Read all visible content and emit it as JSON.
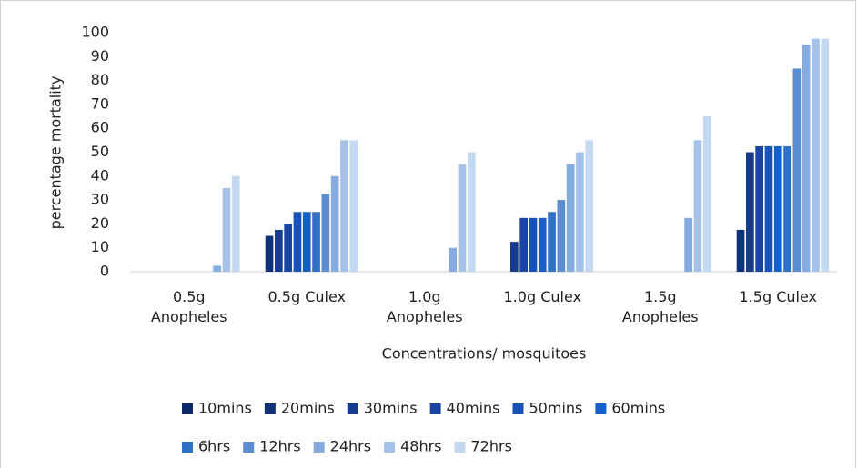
{
  "chart_data": {
    "type": "bar",
    "x_label": "Concentrations/ mosquitoes",
    "y_label": "percentage mortality",
    "categories": [
      "0.5g Anopheles",
      "0.5g Culex",
      "1.0g Anopheles",
      "1.0g Culex",
      "1.5g Anopheles",
      "1.5g Culex"
    ],
    "ylim": [
      0,
      100
    ],
    "yticks": [
      0,
      10,
      20,
      30,
      40,
      50,
      60,
      70,
      80,
      90,
      100
    ],
    "legend": "bottom",
    "series": [
      {
        "name": "10mins",
        "color": "#0c2766",
        "values": [
          0,
          0,
          0,
          0,
          0,
          0
        ]
      },
      {
        "name": "20mins",
        "color": "#11307a",
        "values": [
          0,
          15,
          0,
          0,
          0,
          17.5
        ]
      },
      {
        "name": "30mins",
        "color": "#153a8e",
        "values": [
          0,
          17.5,
          0,
          12.5,
          0,
          50
        ]
      },
      {
        "name": "40mins",
        "color": "#1945a2",
        "values": [
          0,
          20,
          0,
          22.5,
          0,
          52.5
        ]
      },
      {
        "name": "50mins",
        "color": "#1652b8",
        "values": [
          0,
          25,
          0,
          22.5,
          0,
          52.5
        ]
      },
      {
        "name": "60mins",
        "color": "#1460c8",
        "values": [
          0,
          25,
          0,
          22.5,
          0,
          52.5
        ]
      },
      {
        "name": "6hrs",
        "color": "#2d72c6",
        "values": [
          0,
          25,
          0,
          25,
          0,
          52.5
        ]
      },
      {
        "name": "12hrs",
        "color": "#5a8ed0",
        "values": [
          0,
          32.5,
          0,
          30,
          0,
          85
        ]
      },
      {
        "name": "24hrs",
        "color": "#86abdf",
        "values": [
          2.5,
          40,
          10,
          45,
          22.5,
          95
        ]
      },
      {
        "name": "48hrs",
        "color": "#a6c2e9",
        "values": [
          35,
          55,
          45,
          50,
          55,
          97.5
        ]
      },
      {
        "name": "72hrs",
        "color": "#c3d8f1",
        "values": [
          40,
          55,
          50,
          55,
          65,
          97.5
        ]
      }
    ]
  }
}
